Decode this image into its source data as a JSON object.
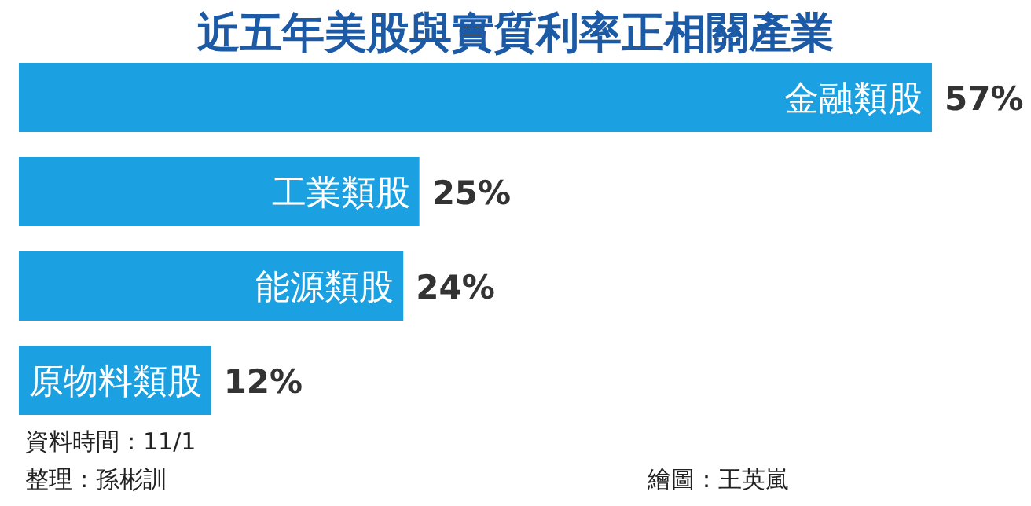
{
  "chart_data": {
    "type": "bar",
    "orientation": "horizontal",
    "title": "近五年美股與實質利率正相關產業",
    "categories": [
      "金融類股",
      "工業類股",
      "能源類股",
      "原物料類股"
    ],
    "values": [
      57,
      25,
      24,
      12
    ],
    "value_labels": [
      "57%",
      "25%",
      "24%",
      "12%"
    ],
    "color": "#1ba1e2",
    "annotations": [
      "資料時間：11/1",
      "整理：孫彬訓",
      "繪圖：王英嵐"
    ]
  }
}
